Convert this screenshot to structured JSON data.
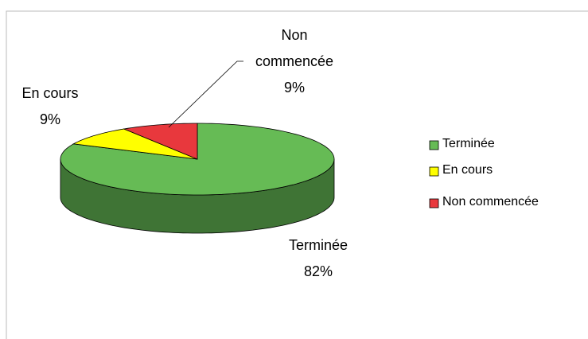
{
  "chart_data": {
    "type": "pie3d",
    "categories": [
      "Terminée",
      "En cours",
      "Non commencée"
    ],
    "values": [
      82,
      9,
      9
    ],
    "value_labels": [
      "82%",
      "9%",
      "9%"
    ],
    "colors": [
      "#66bb55",
      "#ffff00",
      "#e8383d"
    ],
    "legend": "right"
  }
}
